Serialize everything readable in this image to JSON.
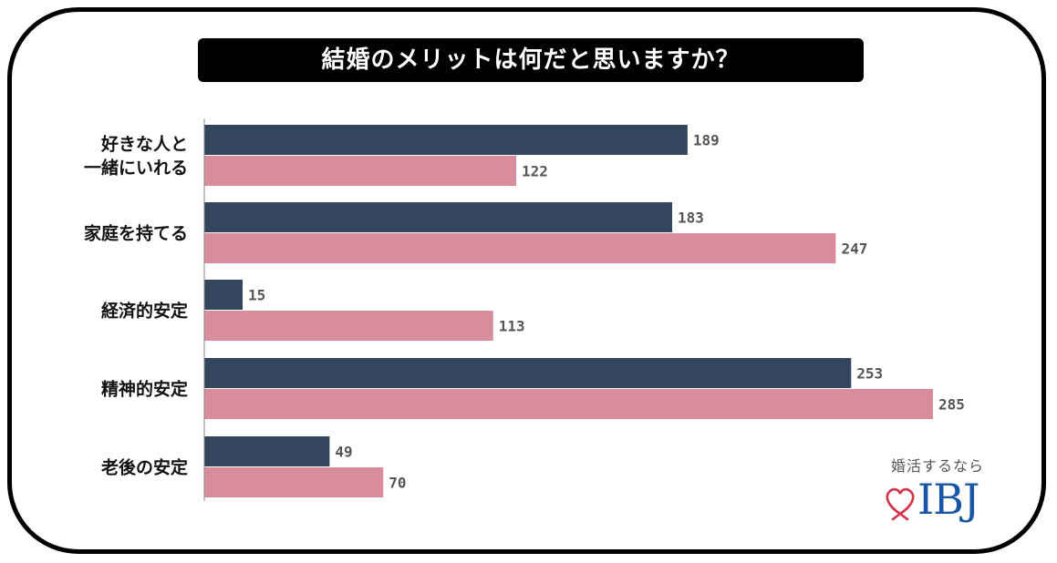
{
  "title": "結婚のメリットは何だと思いますか？",
  "brand": {
    "tagline": "婚活するなら",
    "logo_text": "IBJ",
    "heart_icon": "heart-outline-icon",
    "heart_color": "#d4344a",
    "logo_color": "#1a56a6"
  },
  "chart_data": {
    "type": "bar",
    "orientation": "horizontal",
    "categories": [
      [
        "好きな人と",
        "一緒にいれる"
      ],
      [
        "家庭を持てる"
      ],
      [
        "経済的安定"
      ],
      [
        "精神的安定"
      ],
      [
        "老後の安定"
      ]
    ],
    "series": [
      {
        "values": [
          189,
          183,
          15,
          253,
          49
        ],
        "color": "#33465e"
      },
      {
        "values": [
          122,
          247,
          113,
          285,
          70
        ],
        "color": "#d98c9c"
      }
    ],
    "xlim": [
      0,
      285
    ],
    "grid": false,
    "legend": "none",
    "data_labels": true
  }
}
